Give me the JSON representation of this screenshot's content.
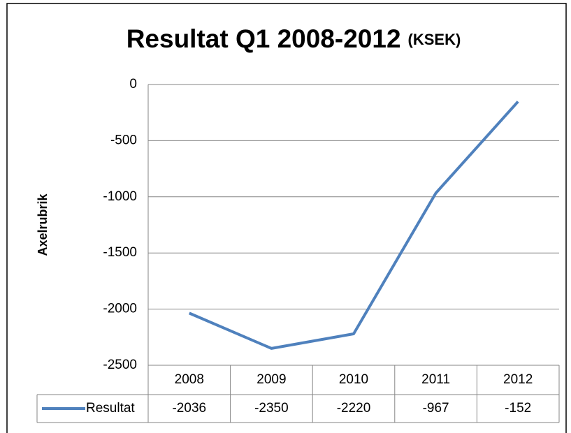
{
  "chart_data": {
    "type": "line",
    "title": "Resultat Q1 2008-2012",
    "subtitle": "(KSEK)",
    "y_label": "Axelrubrik",
    "categories": [
      "2008",
      "2009",
      "2010",
      "2011",
      "2012"
    ],
    "series": [
      {
        "name": "Resultat",
        "color": "#4f81bd",
        "values": [
          -2036,
          -2350,
          -2220,
          -967,
          -152
        ]
      }
    ],
    "ylim": [
      -2500,
      0
    ],
    "yticks": [
      0,
      -500,
      -1000,
      -1500,
      -2000,
      -2500
    ],
    "grid": true,
    "data_table": true
  }
}
